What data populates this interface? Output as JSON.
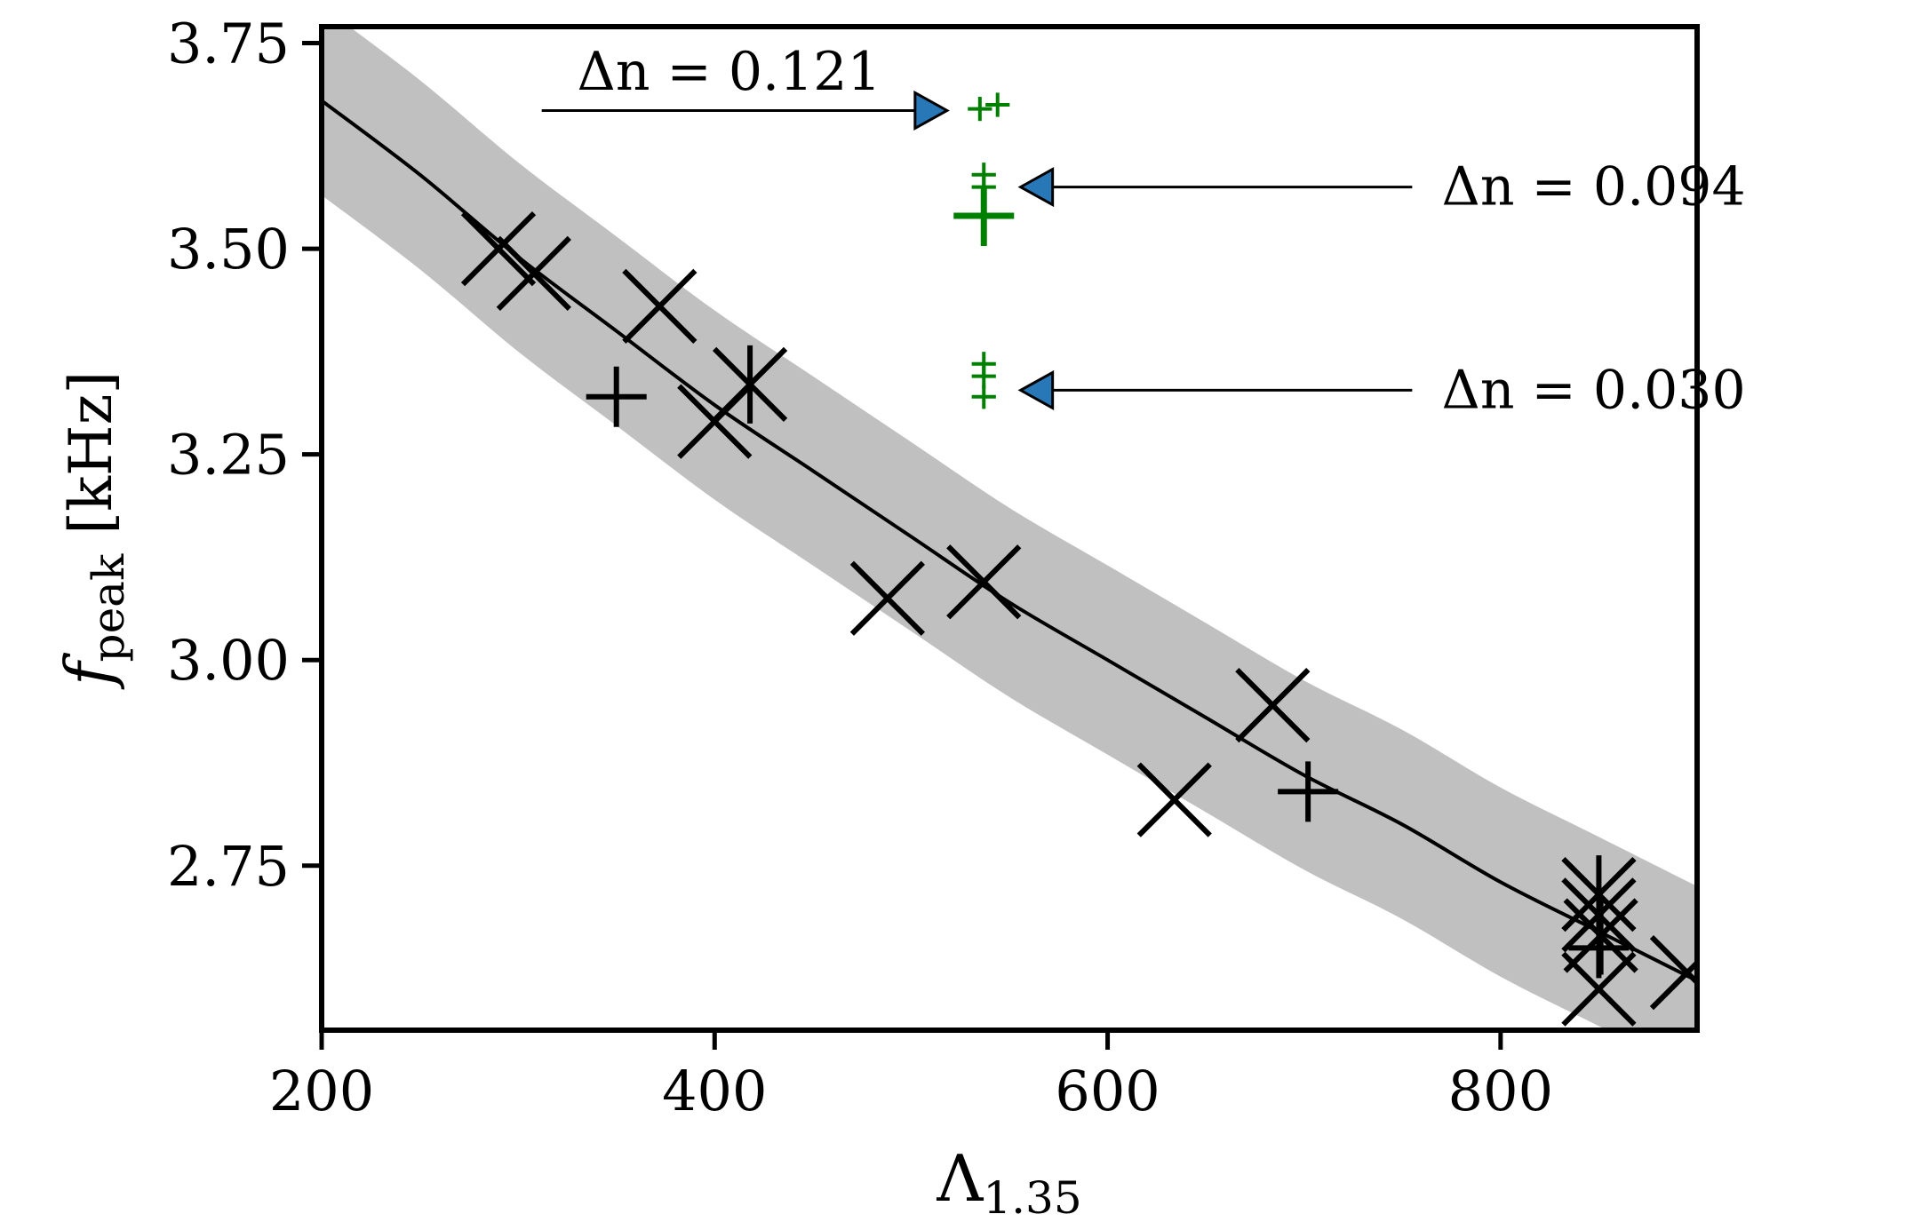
{
  "chart_data": {
    "type": "scatter",
    "xlabel": {
      "main": "Λ",
      "sub": "1.35"
    },
    "ylabel": {
      "main": "f",
      "sub": "peak",
      "unit": "[kHz]"
    },
    "xlim": [
      200,
      900
    ],
    "ylim": [
      2.55,
      3.77
    ],
    "xticks": [
      200,
      400,
      600,
      800
    ],
    "yticks": [
      2.75,
      3.0,
      3.25,
      3.5,
      3.75
    ],
    "xtick_labels": [
      "200",
      "400",
      "600",
      "800"
    ],
    "ytick_labels": [
      "2.75",
      "3.00",
      "3.25",
      "3.50",
      "3.75"
    ],
    "grid": false,
    "fit_curve": {
      "x": [
        200,
        250,
        300,
        350,
        400,
        450,
        500,
        550,
        600,
        650,
        700,
        750,
        800,
        850,
        900
      ],
      "y": [
        3.68,
        3.59,
        3.49,
        3.4,
        3.31,
        3.23,
        3.15,
        3.07,
        3.0,
        2.93,
        2.86,
        2.8,
        2.73,
        2.67,
        2.61
      ],
      "band_halfwidth": 0.115,
      "color": "#000000",
      "band_color": "#c0c0c0"
    },
    "series": [
      {
        "marker": "x",
        "color": "#000000",
        "points": [
          {
            "x": 290,
            "y": 3.5
          },
          {
            "x": 308,
            "y": 3.47
          },
          {
            "x": 372,
            "y": 3.43
          },
          {
            "x": 400,
            "y": 3.29
          },
          {
            "x": 488,
            "y": 3.075
          },
          {
            "x": 537,
            "y": 3.095
          },
          {
            "x": 634,
            "y": 2.83
          },
          {
            "x": 684,
            "y": 2.945
          },
          {
            "x": 850,
            "y": 2.69
          },
          {
            "x": 850,
            "y": 2.6
          },
          {
            "x": 895,
            "y": 2.62
          }
        ]
      },
      {
        "marker": "plus",
        "color": "#000000",
        "points": [
          {
            "x": 350,
            "y": 3.32
          },
          {
            "x": 702,
            "y": 2.84
          },
          {
            "x": 850,
            "y": 2.65
          }
        ]
      },
      {
        "marker": "star",
        "color": "#000000",
        "points": [
          {
            "x": 418,
            "y": 3.335
          },
          {
            "x": 850,
            "y": 2.715
          },
          {
            "x": 851,
            "y": 2.665
          }
        ]
      },
      {
        "marker": "plus",
        "color": "#008000",
        "points": [
          {
            "x": 535,
            "y": 3.67,
            "s": 0.4
          },
          {
            "x": 544,
            "y": 3.675,
            "s": 0.4
          },
          {
            "x": 537,
            "y": 3.59,
            "s": 0.4
          },
          {
            "x": 537,
            "y": 3.575,
            "s": 0.4
          },
          {
            "x": 537,
            "y": 3.54,
            "s": 1.0
          },
          {
            "x": 537,
            "y": 3.36,
            "s": 0.4
          },
          {
            "x": 537,
            "y": 3.345,
            "s": 0.4
          },
          {
            "x": 537,
            "y": 3.32,
            "s": 0.4
          }
        ]
      }
    ],
    "annotations": [
      {
        "text": "Δn = 0.121",
        "text_x": 330,
        "text_y": 3.715,
        "arrow_from": [
          312,
          3.668
        ],
        "arrow_to": [
          502,
          3.668
        ],
        "head": "right"
      },
      {
        "text": "Δn = 0.094",
        "text_x": 770,
        "text_y": 3.575,
        "arrow_from": [
          755,
          3.575
        ],
        "arrow_to": [
          572,
          3.575
        ],
        "head": "left"
      },
      {
        "text": "Δn = 0.030",
        "text_x": 770,
        "text_y": 3.328,
        "arrow_from": [
          755,
          3.328
        ],
        "arrow_to": [
          572,
          3.328
        ],
        "head": "left"
      }
    ],
    "arrow_head_color": "#2878b8"
  }
}
